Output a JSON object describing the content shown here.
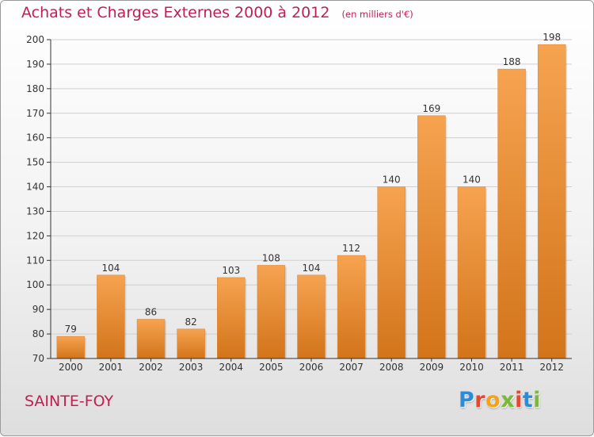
{
  "header": {
    "title": "Achats et Charges Externes 2000 à 2012",
    "subtitle": "(en milliers d'€)"
  },
  "footer": {
    "commune": "SAINTE-FOY",
    "brand": {
      "letters": [
        {
          "char": "P",
          "color": "#2e8bd6"
        },
        {
          "char": "r",
          "color": "#e8462e"
        },
        {
          "char": "o",
          "color": "#f3a31a"
        },
        {
          "char": "x",
          "color": "#7ab839"
        },
        {
          "char": "i",
          "color": "#e8462e"
        },
        {
          "char": "t",
          "color": "#2e8bd6"
        },
        {
          "char": "i",
          "color": "#7ab839"
        }
      ]
    }
  },
  "colors": {
    "title": "#c21e52",
    "bar_top": "#f6a350",
    "bar_bottom": "#d2741a",
    "grid": "#cfcfcf",
    "axis": "#333333"
  },
  "chart_data": {
    "type": "bar",
    "title": "Achats et Charges Externes 2000 à 2012",
    "subtitle": "(en milliers d'€)",
    "categories": [
      "2000",
      "2001",
      "2002",
      "2003",
      "2004",
      "2005",
      "2006",
      "2007",
      "2008",
      "2009",
      "2010",
      "2011",
      "2012"
    ],
    "values": [
      79,
      104,
      86,
      82,
      103,
      108,
      104,
      112,
      140,
      169,
      140,
      188,
      198
    ],
    "data_labels": [
      "79",
      "104",
      "86",
      "82",
      "103",
      "108",
      "104",
      "112",
      "140",
      "169",
      "140",
      "188",
      "198"
    ],
    "ylim": [
      70,
      200
    ],
    "yticks": [
      70,
      80,
      90,
      100,
      110,
      120,
      130,
      140,
      150,
      160,
      170,
      180,
      190,
      200
    ],
    "xlabel": "",
    "ylabel": "",
    "grid": true,
    "legend": "none"
  }
}
